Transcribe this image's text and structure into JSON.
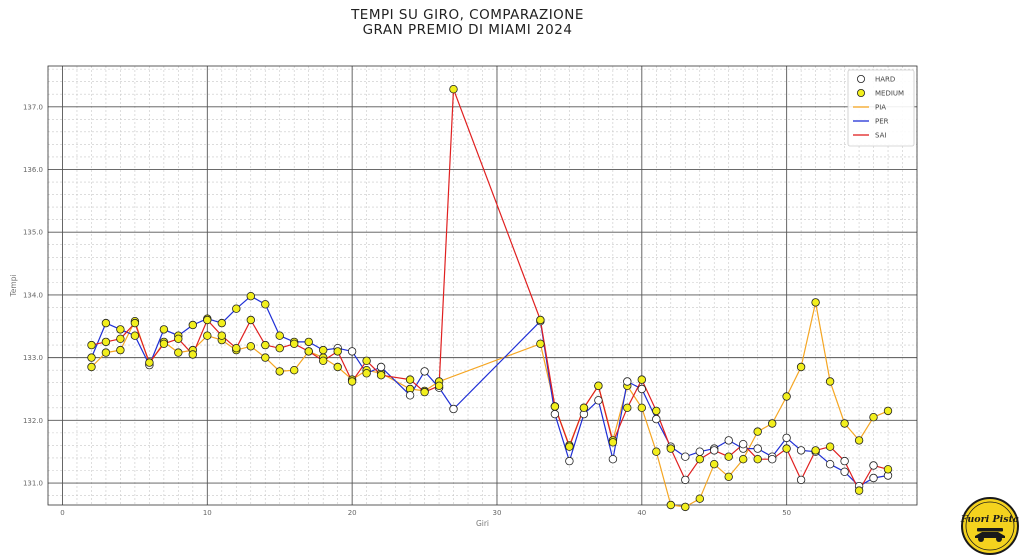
{
  "chart_data": {
    "type": "line",
    "title": "TEMPI SU GIRO, COMPARAZIONE",
    "subtitle": "GRAN PREMIO DI MIAMI 2024",
    "xlabel": "Giri",
    "ylabel": "Tempi",
    "xlim": [
      -1,
      59
    ],
    "ylim": [
      130.65,
      137.65
    ],
    "xticks": [
      0,
      10,
      20,
      30,
      40,
      50
    ],
    "yticks": [
      131.0,
      132.0,
      133.0,
      134.0,
      135.0,
      136.0,
      137.0
    ],
    "ytick_labels": [
      "131.0",
      "132.0",
      "133.0",
      "134.0",
      "135.0",
      "136.0",
      "137.0"
    ],
    "grid": true,
    "legend_position": "top-right",
    "legend": [
      "HARD",
      "MEDIUM",
      "PIA",
      "PER",
      "SAI"
    ],
    "series": [
      {
        "name": "PIA",
        "color": "#f5a623",
        "points": [
          [
            2,
            132.85
          ],
          [
            3,
            133.08
          ],
          [
            4,
            133.12
          ],
          [
            5,
            133.58
          ],
          [
            6,
            132.9
          ],
          [
            7,
            133.25
          ],
          [
            8,
            133.08
          ],
          [
            9,
            133.12
          ],
          [
            10,
            133.35
          ],
          [
            11,
            133.28
          ],
          [
            12,
            133.12
          ],
          [
            13,
            133.18
          ],
          [
            14,
            133.0
          ],
          [
            15,
            132.78
          ],
          [
            16,
            132.8
          ],
          [
            17,
            133.1
          ],
          [
            18,
            133.0
          ],
          [
            19,
            132.85
          ],
          [
            20,
            132.65
          ],
          [
            21,
            132.8
          ],
          [
            22,
            132.75
          ],
          [
            24,
            132.5
          ],
          [
            25,
            132.47
          ],
          [
            26,
            132.62
          ],
          [
            33,
            133.22
          ],
          [
            34,
            132.22
          ],
          [
            35,
            131.6
          ],
          [
            36,
            132.2
          ],
          [
            37,
            132.55
          ],
          [
            38,
            131.68
          ],
          [
            39,
            132.55
          ],
          [
            40,
            132.2
          ],
          [
            41,
            131.5
          ],
          [
            42,
            130.65
          ],
          [
            43,
            130.62
          ],
          [
            44,
            130.75
          ],
          [
            45,
            131.3
          ],
          [
            46,
            131.1
          ],
          [
            47,
            131.38
          ],
          [
            48,
            131.82
          ],
          [
            49,
            131.95
          ],
          [
            50,
            132.38
          ],
          [
            51,
            132.85
          ],
          [
            52,
            133.88
          ],
          [
            53,
            132.62
          ],
          [
            54,
            131.95
          ],
          [
            55,
            131.68
          ],
          [
            56,
            132.05
          ],
          [
            57,
            132.15
          ]
        ],
        "compounds": [
          "MEDIUM",
          "MEDIUM",
          "MEDIUM",
          "MEDIUM",
          "MEDIUM",
          "MEDIUM",
          "MEDIUM",
          "MEDIUM",
          "MEDIUM",
          "MEDIUM",
          "MEDIUM",
          "MEDIUM",
          "MEDIUM",
          "MEDIUM",
          "MEDIUM",
          "MEDIUM",
          "MEDIUM",
          "MEDIUM",
          "MEDIUM",
          "MEDIUM",
          "MEDIUM",
          "MEDIUM",
          "MEDIUM",
          "MEDIUM",
          "MEDIUM",
          "MEDIUM",
          "MEDIUM",
          "MEDIUM",
          "MEDIUM",
          "MEDIUM",
          "MEDIUM",
          "MEDIUM",
          "MEDIUM",
          "MEDIUM",
          "MEDIUM",
          "MEDIUM",
          "MEDIUM",
          "MEDIUM",
          "MEDIUM",
          "MEDIUM",
          "MEDIUM",
          "MEDIUM",
          "MEDIUM",
          "MEDIUM",
          "MEDIUM",
          "MEDIUM",
          "MEDIUM",
          "MEDIUM",
          "MEDIUM"
        ]
      },
      {
        "name": "PER",
        "color": "#1f2fd6",
        "points": [
          [
            2,
            133.0
          ],
          [
            3,
            133.55
          ],
          [
            4,
            133.45
          ],
          [
            5,
            133.35
          ],
          [
            6,
            132.88
          ],
          [
            7,
            133.45
          ],
          [
            8,
            133.35
          ],
          [
            9,
            133.52
          ],
          [
            10,
            133.62
          ],
          [
            11,
            133.55
          ],
          [
            12,
            133.78
          ],
          [
            13,
            133.98
          ],
          [
            14,
            133.85
          ],
          [
            15,
            133.35
          ],
          [
            16,
            133.25
          ],
          [
            17,
            133.25
          ],
          [
            18,
            133.12
          ],
          [
            19,
            133.15
          ],
          [
            20,
            133.1
          ],
          [
            21,
            132.75
          ],
          [
            22,
            132.85
          ],
          [
            24,
            132.4
          ],
          [
            25,
            132.78
          ],
          [
            26,
            132.52
          ],
          [
            27,
            132.18
          ],
          [
            33,
            133.58
          ],
          [
            34,
            132.1
          ],
          [
            35,
            131.35
          ],
          [
            36,
            132.1
          ],
          [
            37,
            132.32
          ],
          [
            38,
            131.38
          ],
          [
            39,
            132.62
          ],
          [
            40,
            132.5
          ],
          [
            41,
            132.02
          ],
          [
            42,
            131.58
          ],
          [
            43,
            131.42
          ],
          [
            44,
            131.5
          ],
          [
            45,
            131.55
          ],
          [
            46,
            131.68
          ],
          [
            47,
            131.55
          ],
          [
            48,
            131.55
          ],
          [
            49,
            131.42
          ],
          [
            50,
            131.72
          ],
          [
            51,
            131.52
          ],
          [
            52,
            131.5
          ],
          [
            53,
            131.3
          ],
          [
            54,
            131.18
          ],
          [
            55,
            130.95
          ],
          [
            56,
            131.08
          ],
          [
            57,
            131.12
          ]
        ],
        "compounds": [
          "MEDIUM",
          "MEDIUM",
          "MEDIUM",
          "MEDIUM",
          "HARD",
          "MEDIUM",
          "MEDIUM",
          "MEDIUM",
          "MEDIUM",
          "MEDIUM",
          "MEDIUM",
          "MEDIUM",
          "MEDIUM",
          "MEDIUM",
          "MEDIUM",
          "MEDIUM",
          "MEDIUM",
          "HARD",
          "HARD",
          "MEDIUM",
          "HARD",
          "HARD",
          "HARD",
          "HARD",
          "HARD",
          "HARD",
          "HARD",
          "HARD",
          "HARD",
          "HARD",
          "HARD",
          "HARD",
          "HARD",
          "HARD",
          "HARD",
          "HARD",
          "HARD",
          "HARD",
          "HARD",
          "HARD",
          "HARD",
          "HARD",
          "HARD",
          "HARD",
          "HARD",
          "HARD",
          "HARD",
          "HARD",
          "HARD",
          "HARD"
        ]
      },
      {
        "name": "SAI",
        "color": "#e02020",
        "points": [
          [
            2,
            133.2
          ],
          [
            3,
            133.25
          ],
          [
            4,
            133.3
          ],
          [
            5,
            133.55
          ],
          [
            6,
            132.92
          ],
          [
            7,
            133.22
          ],
          [
            8,
            133.3
          ],
          [
            9,
            133.05
          ],
          [
            10,
            133.6
          ],
          [
            11,
            133.35
          ],
          [
            12,
            133.15
          ],
          [
            13,
            133.6
          ],
          [
            14,
            133.2
          ],
          [
            15,
            133.15
          ],
          [
            16,
            133.22
          ],
          [
            17,
            133.1
          ],
          [
            18,
            132.95
          ],
          [
            19,
            133.1
          ],
          [
            20,
            132.62
          ],
          [
            21,
            132.95
          ],
          [
            22,
            132.72
          ],
          [
            24,
            132.65
          ],
          [
            25,
            132.45
          ],
          [
            26,
            132.55
          ],
          [
            27,
            137.28
          ],
          [
            33,
            133.6
          ],
          [
            34,
            132.22
          ],
          [
            35,
            131.58
          ],
          [
            36,
            132.2
          ],
          [
            37,
            132.55
          ],
          [
            38,
            131.65
          ],
          [
            39,
            132.2
          ],
          [
            40,
            132.65
          ],
          [
            41,
            132.15
          ],
          [
            42,
            131.55
          ],
          [
            43,
            131.05
          ],
          [
            44,
            131.38
          ],
          [
            45,
            131.52
          ],
          [
            46,
            131.42
          ],
          [
            47,
            131.62
          ],
          [
            48,
            131.38
          ],
          [
            49,
            131.38
          ],
          [
            50,
            131.55
          ],
          [
            51,
            131.05
          ],
          [
            52,
            131.52
          ],
          [
            53,
            131.58
          ],
          [
            54,
            131.35
          ],
          [
            55,
            130.88
          ],
          [
            56,
            131.28
          ],
          [
            57,
            131.22
          ]
        ],
        "compounds": [
          "MEDIUM",
          "MEDIUM",
          "MEDIUM",
          "MEDIUM",
          "MEDIUM",
          "MEDIUM",
          "MEDIUM",
          "MEDIUM",
          "MEDIUM",
          "MEDIUM",
          "MEDIUM",
          "MEDIUM",
          "MEDIUM",
          "MEDIUM",
          "MEDIUM",
          "MEDIUM",
          "MEDIUM",
          "MEDIUM",
          "MEDIUM",
          "MEDIUM",
          "MEDIUM",
          "MEDIUM",
          "MEDIUM",
          "MEDIUM",
          "MEDIUM",
          "MEDIUM",
          "MEDIUM",
          "MEDIUM",
          "MEDIUM",
          "MEDIUM",
          "MEDIUM",
          "MEDIUM",
          "MEDIUM",
          "MEDIUM",
          "MEDIUM",
          "HARD",
          "MEDIUM",
          "HARD",
          "MEDIUM",
          "HARD",
          "MEDIUM",
          "HARD",
          "MEDIUM",
          "HARD",
          "MEDIUM",
          "MEDIUM",
          "HARD",
          "MEDIUM",
          "HARD",
          "MEDIUM"
        ]
      }
    ],
    "marker_colors": {
      "HARD": "#ffffff",
      "MEDIUM": "#f2ef1d"
    }
  },
  "logo": {
    "name": "Fuori Pista"
  }
}
